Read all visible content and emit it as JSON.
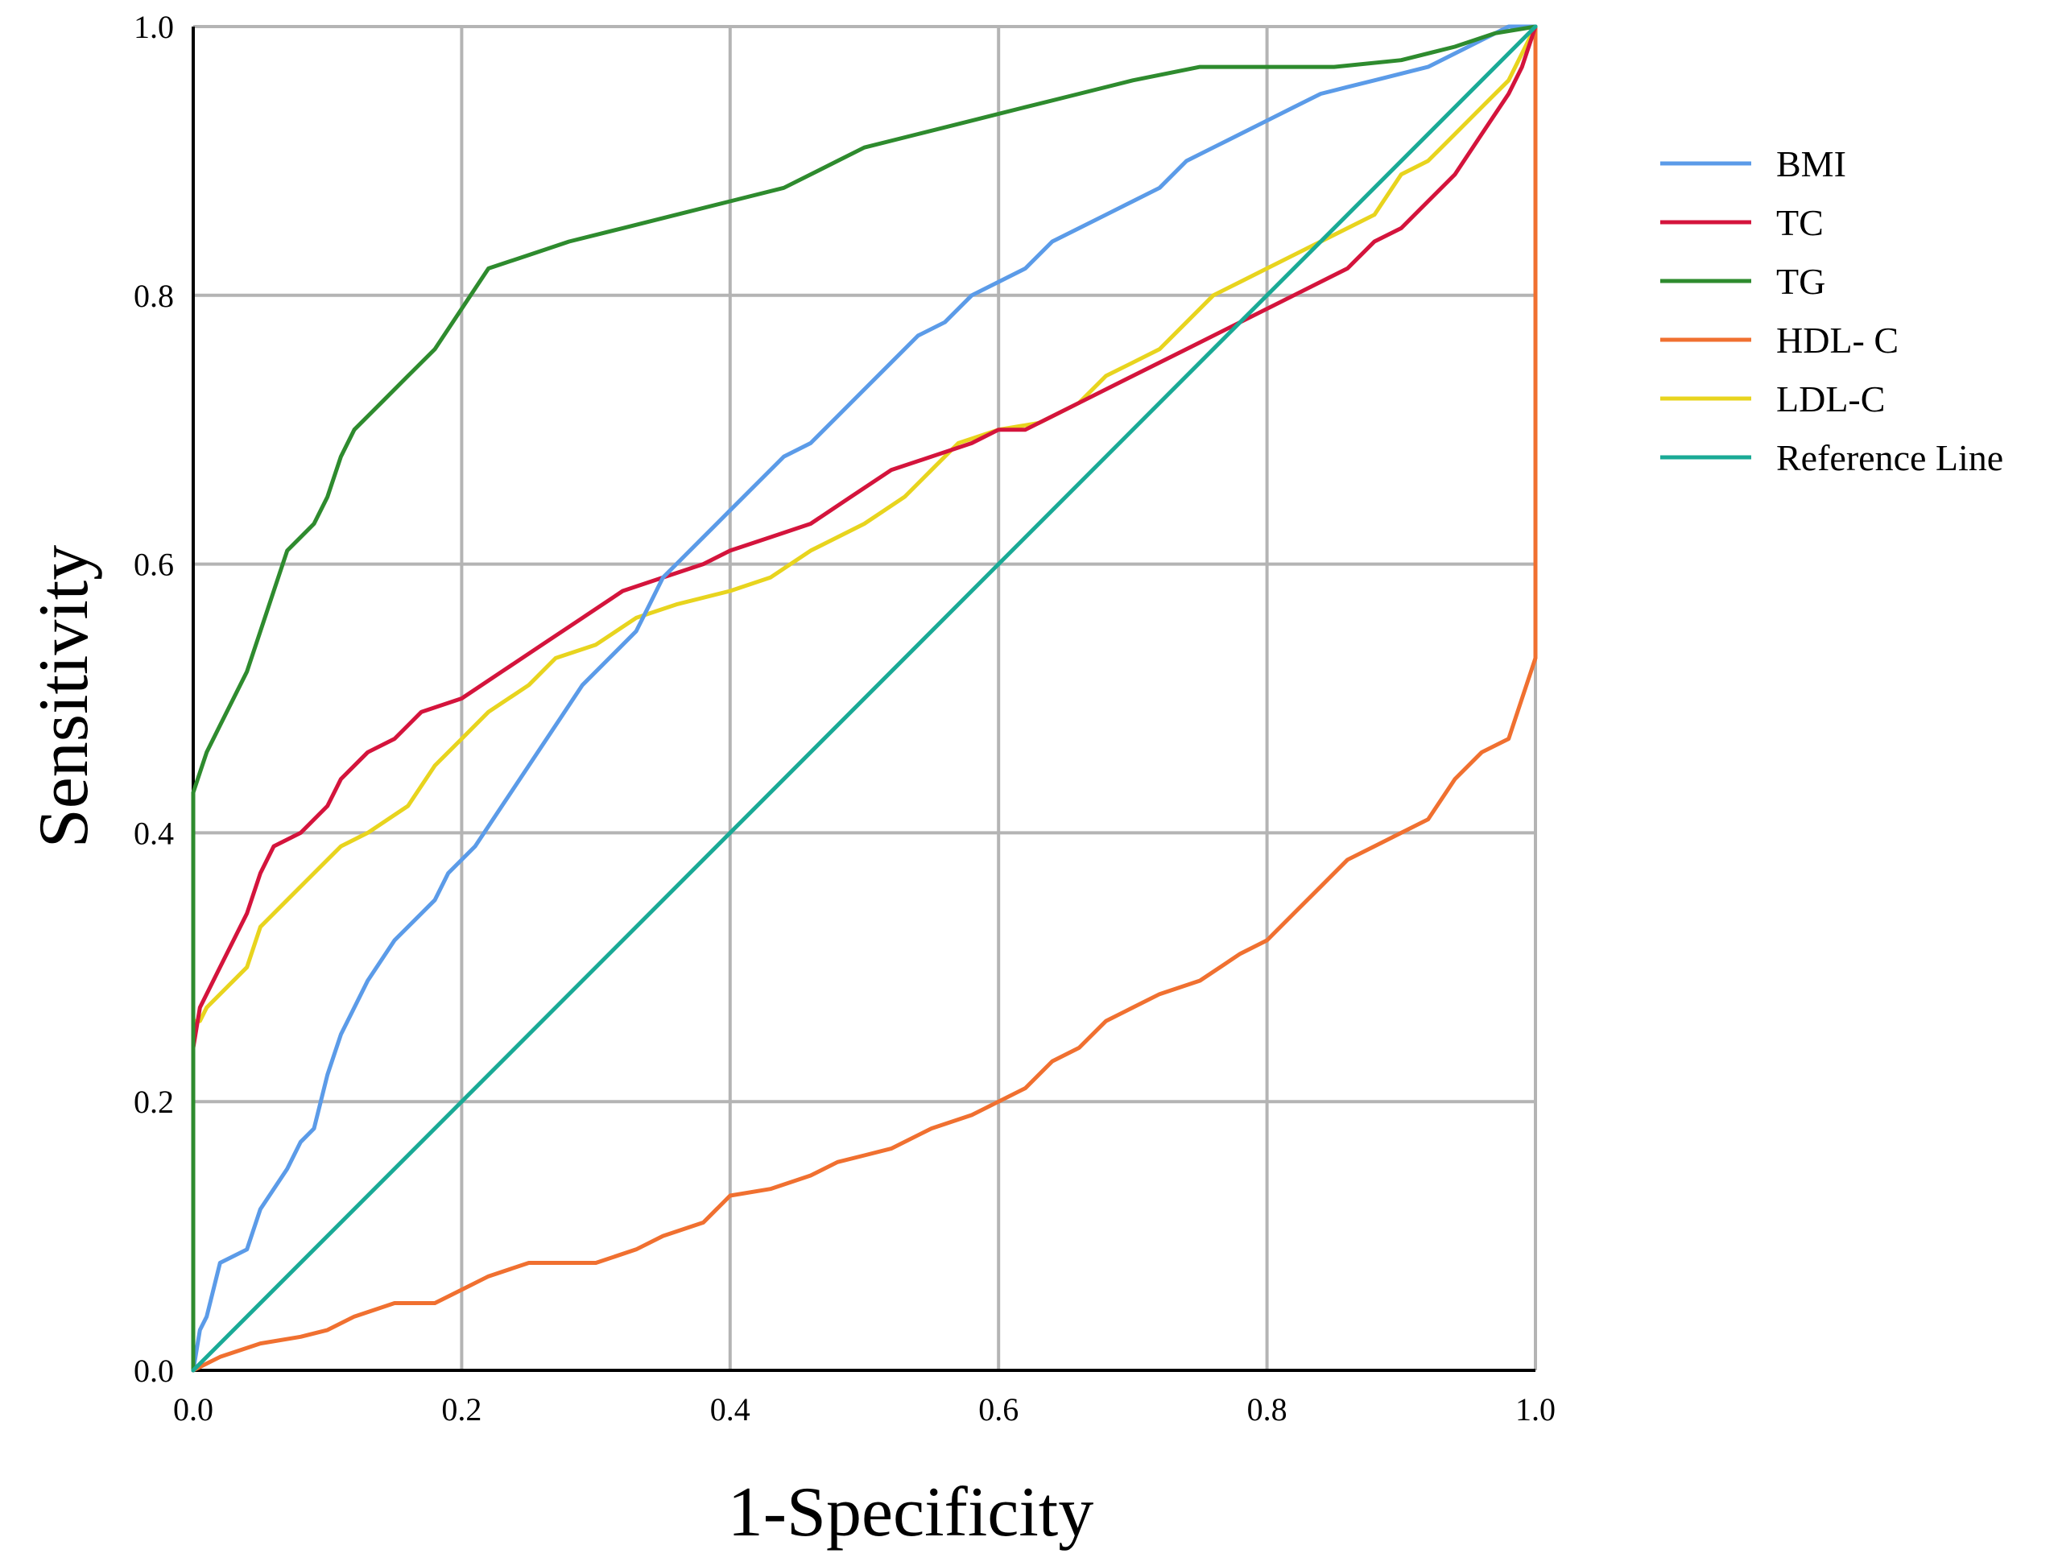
{
  "chart_data": {
    "type": "line",
    "title": "",
    "xlabel": "1-Specificity",
    "ylabel": "Sensitivity",
    "xlim": [
      0,
      1
    ],
    "ylim": [
      0,
      1
    ],
    "xticks": [
      "0.0",
      "0.2",
      "0.4",
      "0.6",
      "0.8",
      "1.0"
    ],
    "yticks": [
      "0.0",
      "0.2",
      "0.4",
      "0.6",
      "0.8",
      "1.0"
    ],
    "grid": true,
    "legend_position": "right",
    "series": [
      {
        "name": "BMI",
        "color": "#5b9be8",
        "points": [
          [
            0,
            0
          ],
          [
            0.005,
            0.03
          ],
          [
            0.01,
            0.04
          ],
          [
            0.02,
            0.08
          ],
          [
            0.04,
            0.09
          ],
          [
            0.05,
            0.12
          ],
          [
            0.07,
            0.15
          ],
          [
            0.08,
            0.17
          ],
          [
            0.09,
            0.18
          ],
          [
            0.1,
            0.22
          ],
          [
            0.11,
            0.25
          ],
          [
            0.13,
            0.29
          ],
          [
            0.15,
            0.32
          ],
          [
            0.17,
            0.34
          ],
          [
            0.18,
            0.35
          ],
          [
            0.19,
            0.37
          ],
          [
            0.21,
            0.39
          ],
          [
            0.23,
            0.42
          ],
          [
            0.25,
            0.45
          ],
          [
            0.27,
            0.48
          ],
          [
            0.29,
            0.51
          ],
          [
            0.31,
            0.53
          ],
          [
            0.33,
            0.55
          ],
          [
            0.34,
            0.57
          ],
          [
            0.35,
            0.59
          ],
          [
            0.36,
            0.6
          ],
          [
            0.38,
            0.62
          ],
          [
            0.4,
            0.64
          ],
          [
            0.42,
            0.66
          ],
          [
            0.44,
            0.68
          ],
          [
            0.46,
            0.69
          ],
          [
            0.48,
            0.71
          ],
          [
            0.5,
            0.73
          ],
          [
            0.52,
            0.75
          ],
          [
            0.54,
            0.77
          ],
          [
            0.56,
            0.78
          ],
          [
            0.58,
            0.8
          ],
          [
            0.6,
            0.81
          ],
          [
            0.62,
            0.82
          ],
          [
            0.64,
            0.84
          ],
          [
            0.66,
            0.85
          ],
          [
            0.68,
            0.86
          ],
          [
            0.7,
            0.87
          ],
          [
            0.72,
            0.88
          ],
          [
            0.74,
            0.9
          ],
          [
            0.76,
            0.91
          ],
          [
            0.78,
            0.92
          ],
          [
            0.8,
            0.93
          ],
          [
            0.82,
            0.94
          ],
          [
            0.84,
            0.95
          ],
          [
            0.86,
            0.955
          ],
          [
            0.88,
            0.96
          ],
          [
            0.9,
            0.965
          ],
          [
            0.92,
            0.97
          ],
          [
            0.94,
            0.98
          ],
          [
            0.96,
            0.99
          ],
          [
            0.98,
            1.0
          ],
          [
            1,
            1
          ]
        ]
      },
      {
        "name": "TC",
        "color": "#d4143c",
        "points": [
          [
            0,
            0
          ],
          [
            0,
            0.24
          ],
          [
            0.005,
            0.27
          ],
          [
            0.02,
            0.3
          ],
          [
            0.04,
            0.34
          ],
          [
            0.05,
            0.37
          ],
          [
            0.06,
            0.39
          ],
          [
            0.08,
            0.4
          ],
          [
            0.1,
            0.42
          ],
          [
            0.11,
            0.44
          ],
          [
            0.13,
            0.46
          ],
          [
            0.15,
            0.47
          ],
          [
            0.17,
            0.49
          ],
          [
            0.2,
            0.5
          ],
          [
            0.23,
            0.52
          ],
          [
            0.26,
            0.54
          ],
          [
            0.29,
            0.56
          ],
          [
            0.32,
            0.58
          ],
          [
            0.35,
            0.59
          ],
          [
            0.38,
            0.6
          ],
          [
            0.4,
            0.61
          ],
          [
            0.43,
            0.62
          ],
          [
            0.46,
            0.63
          ],
          [
            0.49,
            0.65
          ],
          [
            0.52,
            0.67
          ],
          [
            0.55,
            0.68
          ],
          [
            0.58,
            0.69
          ],
          [
            0.6,
            0.7
          ],
          [
            0.62,
            0.7
          ],
          [
            0.64,
            0.71
          ],
          [
            0.66,
            0.72
          ],
          [
            0.7,
            0.74
          ],
          [
            0.74,
            0.76
          ],
          [
            0.78,
            0.78
          ],
          [
            0.82,
            0.8
          ],
          [
            0.86,
            0.82
          ],
          [
            0.88,
            0.84
          ],
          [
            0.9,
            0.85
          ],
          [
            0.92,
            0.87
          ],
          [
            0.94,
            0.89
          ],
          [
            0.96,
            0.92
          ],
          [
            0.98,
            0.95
          ],
          [
            0.99,
            0.97
          ],
          [
            1,
            1
          ]
        ]
      },
      {
        "name": "TG",
        "color": "#2e8b2e",
        "points": [
          [
            0,
            0
          ],
          [
            0,
            0.43
          ],
          [
            0.01,
            0.46
          ],
          [
            0.02,
            0.48
          ],
          [
            0.03,
            0.5
          ],
          [
            0.04,
            0.52
          ],
          [
            0.05,
            0.55
          ],
          [
            0.06,
            0.58
          ],
          [
            0.07,
            0.61
          ],
          [
            0.09,
            0.63
          ],
          [
            0.1,
            0.65
          ],
          [
            0.11,
            0.68
          ],
          [
            0.12,
            0.7
          ],
          [
            0.14,
            0.72
          ],
          [
            0.16,
            0.74
          ],
          [
            0.18,
            0.76
          ],
          [
            0.2,
            0.79
          ],
          [
            0.22,
            0.82
          ],
          [
            0.25,
            0.83
          ],
          [
            0.28,
            0.84
          ],
          [
            0.32,
            0.85
          ],
          [
            0.36,
            0.86
          ],
          [
            0.4,
            0.87
          ],
          [
            0.44,
            0.88
          ],
          [
            0.48,
            0.9
          ],
          [
            0.5,
            0.91
          ],
          [
            0.54,
            0.92
          ],
          [
            0.58,
            0.93
          ],
          [
            0.62,
            0.94
          ],
          [
            0.66,
            0.95
          ],
          [
            0.7,
            0.96
          ],
          [
            0.75,
            0.97
          ],
          [
            0.8,
            0.97
          ],
          [
            0.85,
            0.97
          ],
          [
            0.9,
            0.975
          ],
          [
            0.94,
            0.985
          ],
          [
            0.97,
            0.995
          ],
          [
            1,
            1
          ]
        ]
      },
      {
        "name": "HDL- C",
        "color": "#f07030",
        "points": [
          [
            0,
            0
          ],
          [
            0.02,
            0.01
          ],
          [
            0.05,
            0.02
          ],
          [
            0.08,
            0.025
          ],
          [
            0.1,
            0.03
          ],
          [
            0.12,
            0.04
          ],
          [
            0.15,
            0.05
          ],
          [
            0.18,
            0.05
          ],
          [
            0.2,
            0.06
          ],
          [
            0.22,
            0.07
          ],
          [
            0.25,
            0.08
          ],
          [
            0.28,
            0.08
          ],
          [
            0.3,
            0.08
          ],
          [
            0.33,
            0.09
          ],
          [
            0.35,
            0.1
          ],
          [
            0.38,
            0.11
          ],
          [
            0.4,
            0.13
          ],
          [
            0.43,
            0.135
          ],
          [
            0.46,
            0.145
          ],
          [
            0.48,
            0.155
          ],
          [
            0.5,
            0.16
          ],
          [
            0.52,
            0.165
          ],
          [
            0.55,
            0.18
          ],
          [
            0.58,
            0.19
          ],
          [
            0.6,
            0.2
          ],
          [
            0.62,
            0.21
          ],
          [
            0.64,
            0.23
          ],
          [
            0.66,
            0.24
          ],
          [
            0.68,
            0.26
          ],
          [
            0.7,
            0.27
          ],
          [
            0.72,
            0.28
          ],
          [
            0.75,
            0.29
          ],
          [
            0.78,
            0.31
          ],
          [
            0.8,
            0.32
          ],
          [
            0.82,
            0.34
          ],
          [
            0.84,
            0.36
          ],
          [
            0.86,
            0.38
          ],
          [
            0.88,
            0.39
          ],
          [
            0.9,
            0.4
          ],
          [
            0.92,
            0.41
          ],
          [
            0.94,
            0.44
          ],
          [
            0.96,
            0.46
          ],
          [
            0.98,
            0.47
          ],
          [
            0.99,
            0.5
          ],
          [
            1,
            0.53
          ],
          [
            1,
            1
          ]
        ]
      },
      {
        "name": "LDL-C",
        "color": "#e8d41e",
        "points": [
          [
            0,
            0
          ],
          [
            0,
            0.26
          ],
          [
            0.005,
            0.26
          ],
          [
            0.01,
            0.27
          ],
          [
            0.02,
            0.28
          ],
          [
            0.04,
            0.3
          ],
          [
            0.05,
            0.33
          ],
          [
            0.07,
            0.35
          ],
          [
            0.09,
            0.37
          ],
          [
            0.11,
            0.39
          ],
          [
            0.13,
            0.4
          ],
          [
            0.16,
            0.42
          ],
          [
            0.18,
            0.45
          ],
          [
            0.2,
            0.47
          ],
          [
            0.22,
            0.49
          ],
          [
            0.25,
            0.51
          ],
          [
            0.27,
            0.53
          ],
          [
            0.3,
            0.54
          ],
          [
            0.33,
            0.56
          ],
          [
            0.36,
            0.57
          ],
          [
            0.4,
            0.58
          ],
          [
            0.43,
            0.59
          ],
          [
            0.46,
            0.61
          ],
          [
            0.5,
            0.63
          ],
          [
            0.53,
            0.65
          ],
          [
            0.55,
            0.67
          ],
          [
            0.57,
            0.69
          ],
          [
            0.6,
            0.7
          ],
          [
            0.63,
            0.705
          ],
          [
            0.66,
            0.72
          ],
          [
            0.68,
            0.74
          ],
          [
            0.7,
            0.75
          ],
          [
            0.72,
            0.76
          ],
          [
            0.74,
            0.78
          ],
          [
            0.76,
            0.8
          ],
          [
            0.78,
            0.81
          ],
          [
            0.8,
            0.82
          ],
          [
            0.82,
            0.83
          ],
          [
            0.84,
            0.84
          ],
          [
            0.86,
            0.85
          ],
          [
            0.88,
            0.86
          ],
          [
            0.9,
            0.89
          ],
          [
            0.92,
            0.9
          ],
          [
            0.94,
            0.92
          ],
          [
            0.96,
            0.94
          ],
          [
            0.98,
            0.96
          ],
          [
            0.99,
            0.98
          ],
          [
            1,
            1
          ]
        ]
      },
      {
        "name": "Reference Line",
        "color": "#1aaa96",
        "points": [
          [
            0,
            0
          ],
          [
            1,
            1
          ]
        ]
      }
    ]
  }
}
